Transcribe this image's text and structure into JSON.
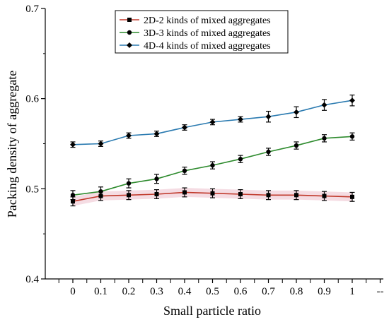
{
  "chart_data": {
    "type": "line",
    "xlabel": "Small particle ratio",
    "ylabel": "Packing density of aggregate",
    "ylim": [
      0.4,
      0.7
    ],
    "yticks": [
      "0.4",
      "0.5",
      "0.6",
      "0.7"
    ],
    "categories": [
      "0",
      "0.1",
      "0.2",
      "0.3",
      "0.4",
      "0.5",
      "0.6",
      "0.7",
      "0.8",
      "0.9",
      "1",
      "--"
    ],
    "x": [
      0,
      0.1,
      0.2,
      0.3,
      0.4,
      0.5,
      0.6,
      0.7,
      0.8,
      0.9,
      1.0
    ],
    "grid": false,
    "legend_position": "top-center",
    "series": [
      {
        "name": "2D-2 kinds of mixed aggregates",
        "color": "#c0392b",
        "band_color": "#f2d3dc",
        "marker": "square",
        "values": [
          0.486,
          0.492,
          0.493,
          0.494,
          0.496,
          0.495,
          0.494,
          0.493,
          0.493,
          0.492,
          0.491
        ],
        "errors": [
          0.005,
          0.005,
          0.005,
          0.005,
          0.005,
          0.005,
          0.005,
          0.005,
          0.005,
          0.005,
          0.005
        ]
      },
      {
        "name": "3D-3 kinds of mixed aggregates",
        "color": "#2e8b2e",
        "marker": "circle",
        "values": [
          0.493,
          0.497,
          0.506,
          0.511,
          0.52,
          0.526,
          0.533,
          0.541,
          0.548,
          0.556,
          0.558
        ],
        "errors": [
          0.005,
          0.005,
          0.005,
          0.005,
          0.004,
          0.004,
          0.004,
          0.004,
          0.004,
          0.004,
          0.004
        ]
      },
      {
        "name": "4D-4 kinds of mixed aggregates",
        "color": "#2a7ab0",
        "marker": "diamond",
        "values": [
          0.549,
          0.55,
          0.559,
          0.561,
          0.568,
          0.574,
          0.577,
          0.58,
          0.585,
          0.593,
          0.598
        ],
        "errors": [
          0.003,
          0.003,
          0.003,
          0.003,
          0.003,
          0.003,
          0.003,
          0.006,
          0.006,
          0.006,
          0.006
        ]
      }
    ]
  }
}
